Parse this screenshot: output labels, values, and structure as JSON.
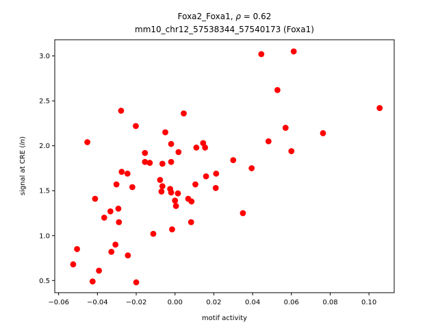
{
  "chart_data": {
    "type": "scatter",
    "title_line1": "Foxa2_Foxa1, ρ = 0.62",
    "title_line2": "mm10_chr12_57538344_57540173 (Foxa1)",
    "xlabel": "motif activity",
    "ylabel": "signal at CRE (ln)",
    "xlim": [
      -0.062,
      0.113
    ],
    "ylim": [
      0.365,
      3.18
    ],
    "xticks": [
      -0.06,
      -0.04,
      -0.02,
      0.0,
      0.02,
      0.04,
      0.06,
      0.08,
      0.1
    ],
    "xtick_labels": [
      "−0.06",
      "−0.04",
      "−0.02",
      "0.00",
      "0.02",
      "0.04",
      "0.06",
      "0.08",
      "0.10"
    ],
    "yticks": [
      0.5,
      1.0,
      1.5,
      2.0,
      2.5,
      3.0
    ],
    "ytick_labels": [
      "0.5",
      "1.0",
      "1.5",
      "2.0",
      "2.5",
      "3.0"
    ],
    "grid": false,
    "color": "#ff0000",
    "points": [
      [
        -0.0525,
        0.68
      ],
      [
        -0.0505,
        0.85
      ],
      [
        -0.0452,
        2.04
      ],
      [
        -0.0425,
        0.49
      ],
      [
        -0.0412,
        1.41
      ],
      [
        -0.0392,
        0.61
      ],
      [
        -0.0365,
        1.2
      ],
      [
        -0.0333,
        1.27
      ],
      [
        -0.0328,
        0.82
      ],
      [
        -0.0307,
        0.9
      ],
      [
        -0.0302,
        1.57
      ],
      [
        -0.0292,
        1.3
      ],
      [
        -0.0289,
        1.15
      ],
      [
        -0.0278,
        2.39
      ],
      [
        -0.0275,
        1.71
      ],
      [
        -0.0245,
        1.69
      ],
      [
        -0.0243,
        0.78
      ],
      [
        -0.022,
        1.54
      ],
      [
        -0.0202,
        2.22
      ],
      [
        -0.02,
        0.48
      ],
      [
        -0.0155,
        1.92
      ],
      [
        -0.0155,
        1.82
      ],
      [
        -0.013,
        1.81
      ],
      [
        -0.0112,
        1.02
      ],
      [
        -0.0077,
        1.62
      ],
      [
        -0.007,
        1.49
      ],
      [
        -0.0065,
        1.8
      ],
      [
        -0.0065,
        1.55
      ],
      [
        -0.005,
        2.15
      ],
      [
        -0.0025,
        1.52
      ],
      [
        -0.002,
        1.48
      ],
      [
        -0.002,
        1.82
      ],
      [
        -0.002,
        2.02
      ],
      [
        -0.0015,
        1.07
      ],
      [
        0.0,
        1.39
      ],
      [
        0.0005,
        1.33
      ],
      [
        0.0015,
        1.47
      ],
      [
        0.0018,
        1.93
      ],
      [
        0.0045,
        2.36
      ],
      [
        0.0068,
        1.41
      ],
      [
        0.0083,
        1.15
      ],
      [
        0.0085,
        1.38
      ],
      [
        0.0105,
        1.57
      ],
      [
        0.011,
        1.98
      ],
      [
        0.0145,
        2.03
      ],
      [
        0.0155,
        1.98
      ],
      [
        0.016,
        1.66
      ],
      [
        0.021,
        1.53
      ],
      [
        0.0212,
        1.69
      ],
      [
        0.03,
        1.84
      ],
      [
        0.035,
        1.25
      ],
      [
        0.0395,
        1.75
      ],
      [
        0.0445,
        3.02
      ],
      [
        0.0482,
        2.05
      ],
      [
        0.0528,
        2.62
      ],
      [
        0.057,
        2.2
      ],
      [
        0.06,
        1.94
      ],
      [
        0.0612,
        3.05
      ],
      [
        0.0763,
        2.14
      ],
      [
        0.1055,
        2.42
      ]
    ]
  }
}
